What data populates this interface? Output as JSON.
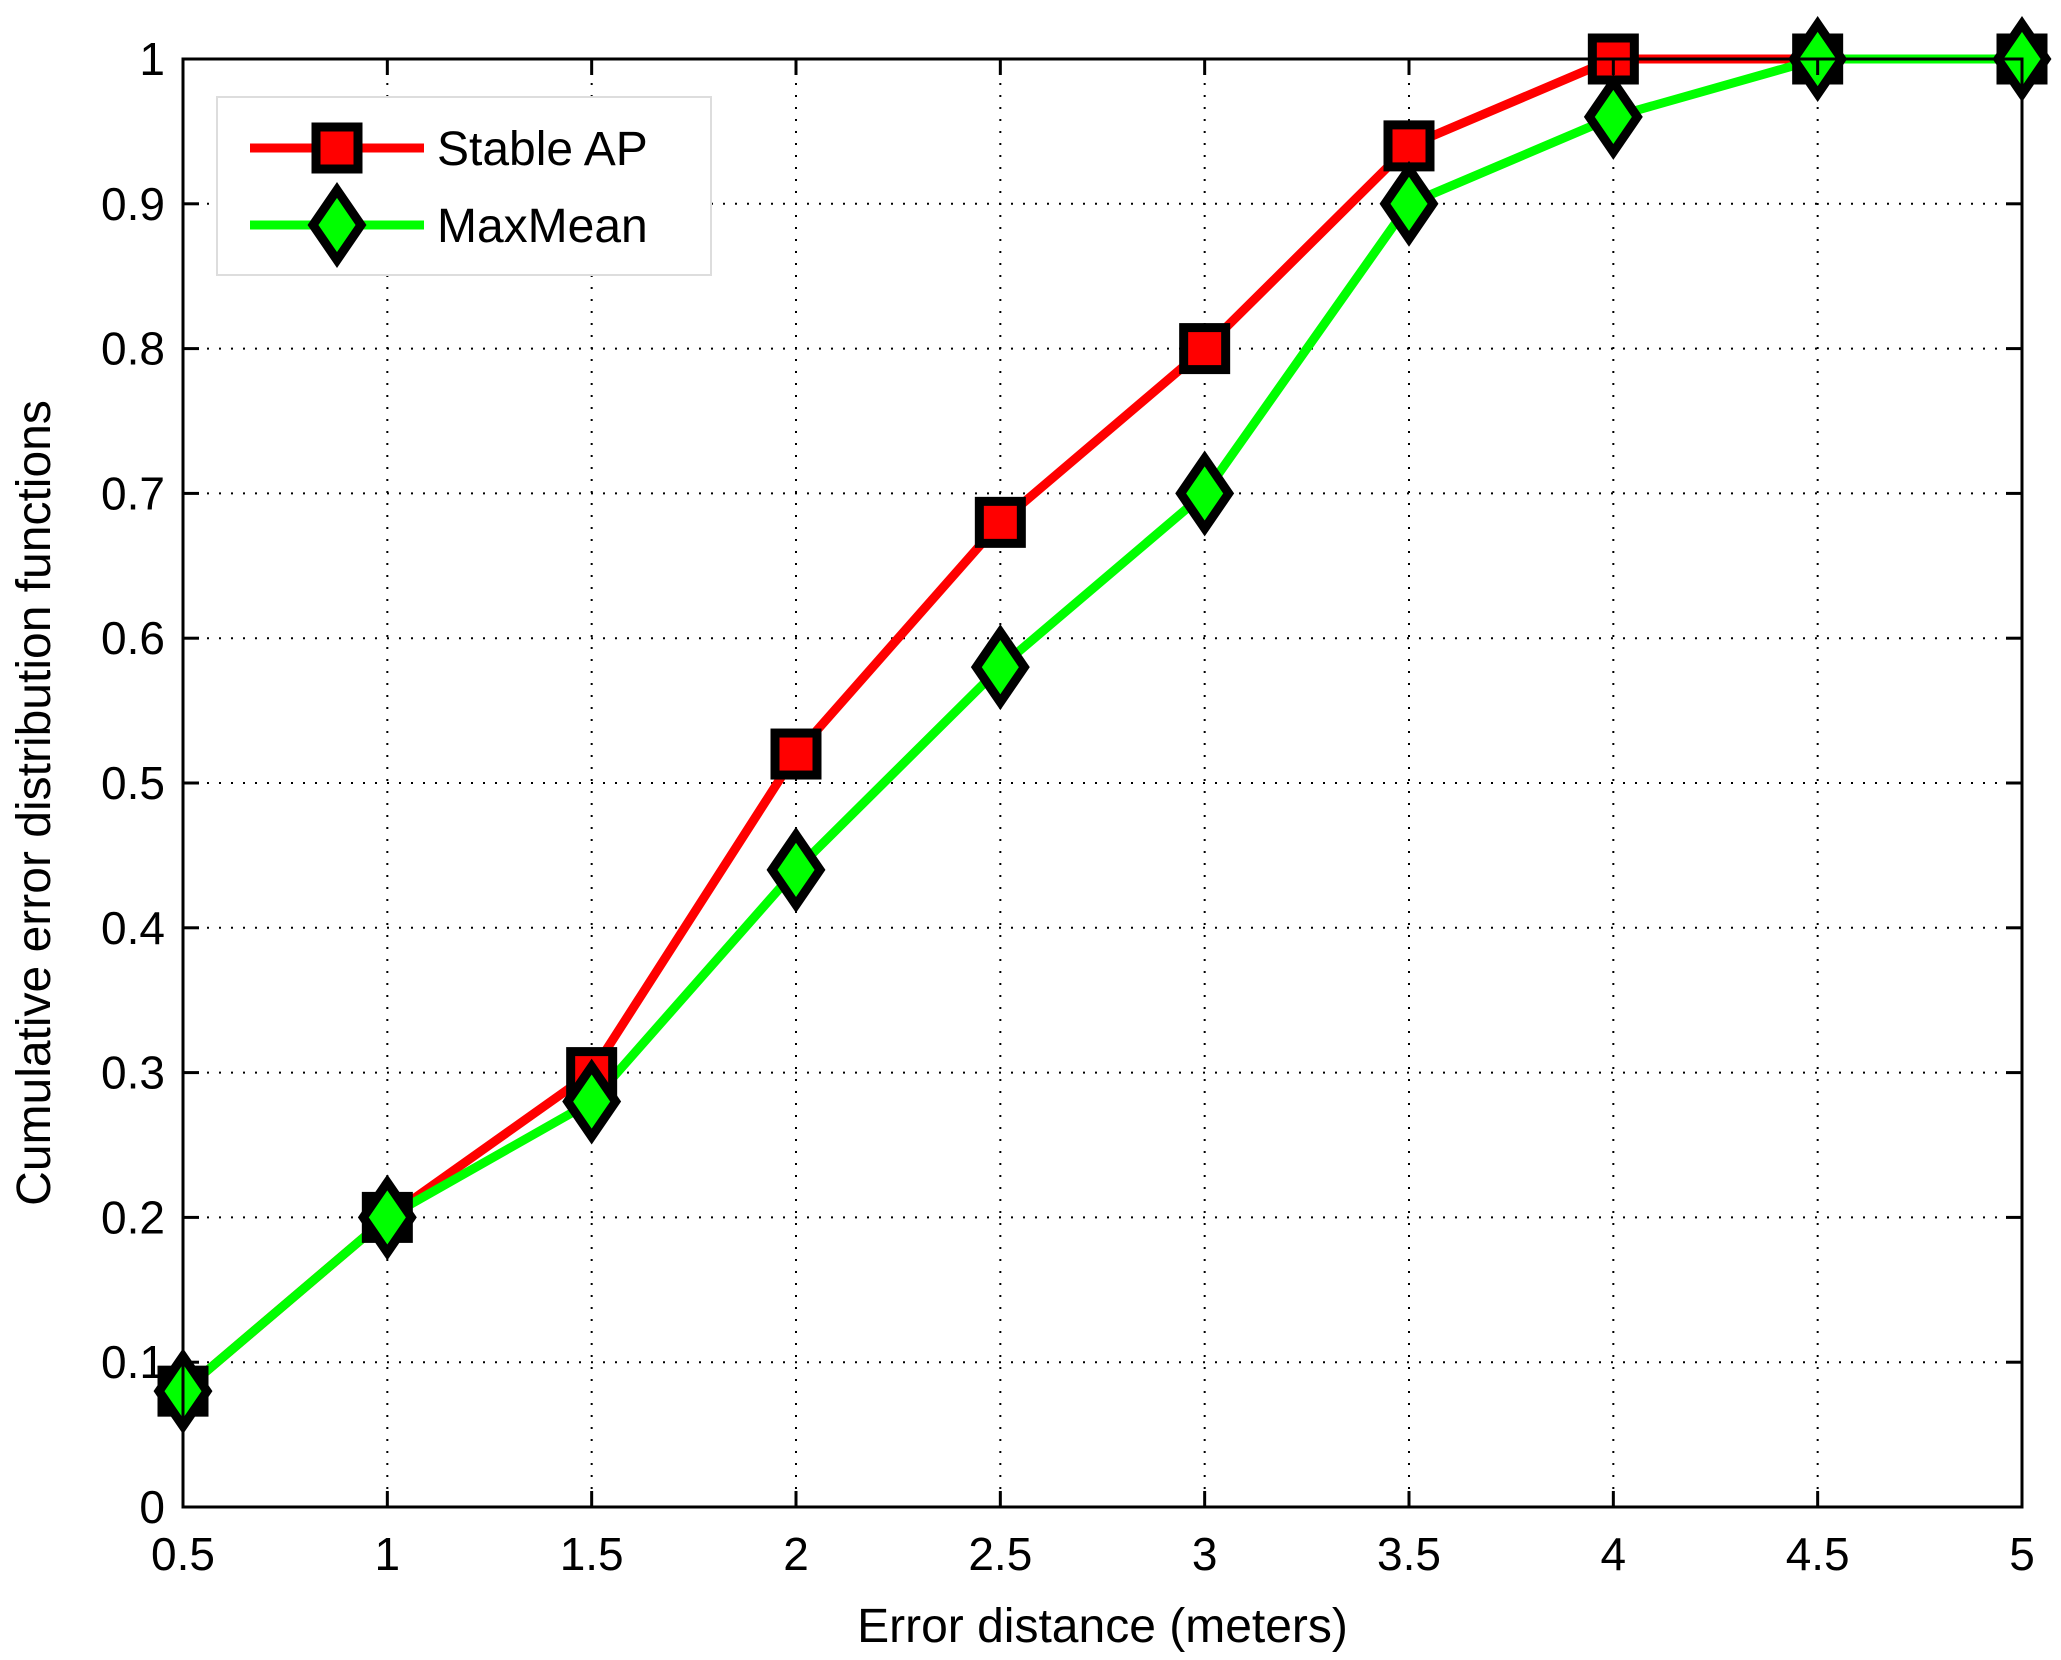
{
  "chart_data": {
    "type": "line",
    "title": "",
    "xlabel": "Error distance (meters)",
    "ylabel": "Cumulative error distribution functions",
    "xlim": [
      0.5,
      5
    ],
    "ylim": [
      0,
      1
    ],
    "x_ticks": [
      "0.5",
      "1",
      "1.5",
      "2",
      "2.5",
      "3",
      "3.5",
      "4",
      "4.5",
      "5"
    ],
    "y_ticks": [
      "0",
      "0.1",
      "0.2",
      "0.3",
      "0.4",
      "0.5",
      "0.6",
      "0.7",
      "0.8",
      "0.9",
      "1"
    ],
    "grid": true,
    "legend_position": "top-left",
    "x": [
      0.5,
      1,
      1.5,
      2,
      2.5,
      3,
      3.5,
      4,
      4.5,
      5
    ],
    "series": [
      {
        "name": "Stable AP",
        "color": "#ff0000",
        "marker": "square",
        "values": [
          0.08,
          0.2,
          0.3,
          0.52,
          0.68,
          0.8,
          0.94,
          1.0,
          1.0,
          1.0
        ]
      },
      {
        "name": "MaxMean",
        "color": "#00ff00",
        "marker": "diamond",
        "values": [
          0.08,
          0.2,
          0.28,
          0.44,
          0.58,
          0.7,
          0.9,
          0.96,
          1.0,
          1.0
        ]
      }
    ]
  }
}
